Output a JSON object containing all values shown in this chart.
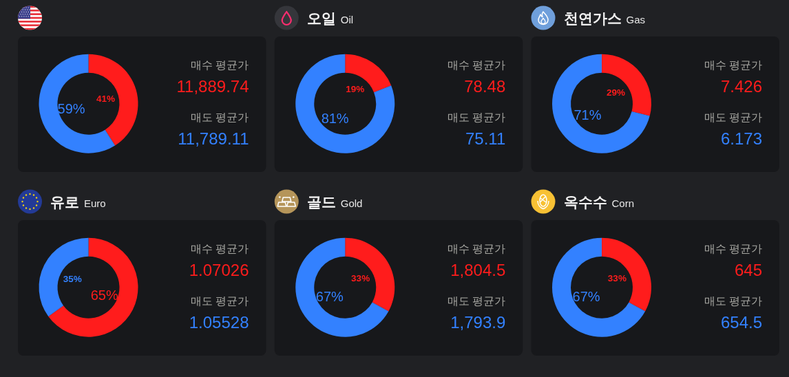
{
  "chart_data": [
    {
      "type": "donut",
      "categories": [
        null,
        null
      ],
      "values": [
        41,
        59
      ],
      "colors": [
        "#ff1c1c",
        "#3381ff"
      ],
      "value_labels": [
        "41%",
        "59%"
      ],
      "annotations": [
        "매수 평균가",
        "11,889.74",
        "매도 평균가",
        "11,789.11"
      ]
    },
    {
      "type": "donut",
      "title": "오일",
      "subtitle": "Oil",
      "categories": [
        null,
        null
      ],
      "values": [
        19,
        81
      ],
      "colors": [
        "#ff1c1c",
        "#3381ff"
      ],
      "value_labels": [
        "19%",
        "81%"
      ],
      "annotations": [
        "매수 평균가",
        "78.48",
        "매도 평균가",
        "75.11"
      ]
    },
    {
      "type": "donut",
      "title": "천연가스",
      "subtitle": "Gas",
      "categories": [
        null,
        null
      ],
      "values": [
        29,
        71
      ],
      "colors": [
        "#ff1c1c",
        "#3381ff"
      ],
      "value_labels": [
        "29%",
        "71%"
      ],
      "annotations": [
        "매수 평균가",
        "7.426",
        "매도 평균가",
        "6.173"
      ]
    },
    {
      "type": "donut",
      "title": "유로",
      "subtitle": "Euro",
      "categories": [
        null,
        null
      ],
      "values": [
        65,
        35
      ],
      "colors": [
        "#ff1c1c",
        "#3381ff"
      ],
      "value_labels": [
        "65%",
        "35%"
      ],
      "annotations": [
        "매수 평균가",
        "1.07026",
        "매도 평균가",
        "1.05528"
      ]
    },
    {
      "type": "donut",
      "title": "골드",
      "subtitle": "Gold",
      "categories": [
        null,
        null
      ],
      "values": [
        33,
        67
      ],
      "colors": [
        "#ff1c1c",
        "#3381ff"
      ],
      "value_labels": [
        "33%",
        "67%"
      ],
      "annotations": [
        "매수 평균가",
        "1,804.5",
        "매도 평균가",
        "1,793.9"
      ]
    },
    {
      "type": "donut",
      "title": "옥수수",
      "subtitle": "Corn",
      "categories": [
        null,
        null
      ],
      "values": [
        33,
        67
      ],
      "colors": [
        "#ff1c1c",
        "#3381ff"
      ],
      "value_labels": [
        "33%",
        "67%"
      ],
      "annotations": [
        "매수 평균가",
        "645",
        "매도 평균가",
        "654.5"
      ]
    }
  ]
}
